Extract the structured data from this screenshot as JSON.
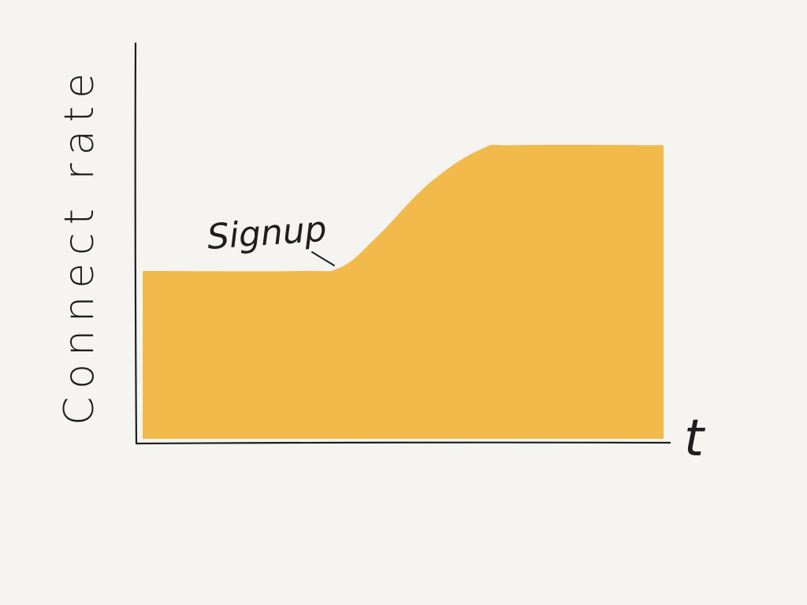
{
  "chart_data": {
    "type": "area",
    "xlabel": "t",
    "ylabel": "Connect rate",
    "annotations": [
      {
        "text": "Signup",
        "x": 0.38
      }
    ],
    "xlim": [
      0,
      1
    ],
    "ylim": [
      0,
      1
    ],
    "grid": false,
    "x": [
      0,
      0.3,
      0.38,
      0.45,
      0.55,
      0.65,
      0.72,
      1.0
    ],
    "values": [
      0.44,
      0.44,
      0.45,
      0.53,
      0.67,
      0.76,
      0.77,
      0.77
    ],
    "colors": {
      "fill": "#f2ba4a",
      "axis": "#1e1e1e",
      "background": "#f5f4f1"
    }
  }
}
